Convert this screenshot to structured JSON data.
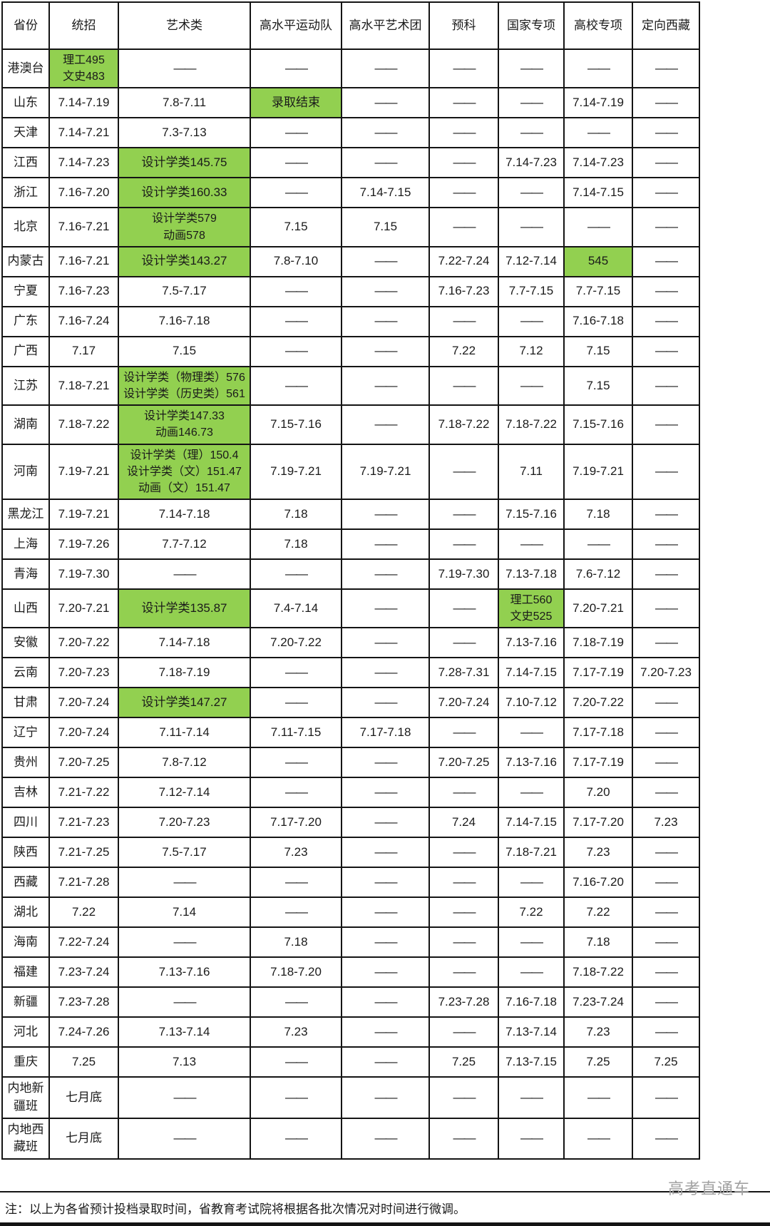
{
  "note": "注：以上为各省预计投档录取时间，省教育考试院将根据各批次情况对时间进行微调。",
  "watermark": "高考直通车",
  "colors": {
    "highlight_green": "#92d050",
    "border_black": "#141414",
    "dash_gray": "#3d3d3d",
    "watermark_gray": "#a2a2a2"
  },
  "table": {
    "dash": "——",
    "columns": [
      "省份",
      "统招",
      "艺术类",
      "高水平运动队",
      "高水平艺术团",
      "预科",
      "国家专项",
      "高校专项",
      "定向西藏"
    ],
    "rows": [
      {
        "province": "港澳台",
        "cells": [
          {
            "green": true,
            "lines": [
              "理工495",
              "文史483"
            ]
          },
          "——",
          "——",
          "——",
          "——",
          "——",
          "——",
          "——"
        ]
      },
      {
        "province": "山东",
        "cells": [
          "7.14-7.19",
          "7.8-7.11",
          {
            "green": true,
            "lines": [
              "录取结束"
            ]
          },
          "——",
          "——",
          "——",
          "7.14-7.19",
          "——"
        ]
      },
      {
        "province": "天津",
        "cells": [
          "7.14-7.21",
          "7.3-7.13",
          "——",
          "——",
          "——",
          "——",
          "——",
          "——"
        ]
      },
      {
        "province": "江西",
        "cells": [
          "7.14-7.23",
          {
            "green": true,
            "lines": [
              "设计学类145.75"
            ]
          },
          "——",
          "——",
          "——",
          "7.14-7.23",
          "7.14-7.23",
          "——"
        ]
      },
      {
        "province": "浙江",
        "cells": [
          "7.16-7.20",
          {
            "green": true,
            "lines": [
              "设计学类160.33"
            ]
          },
          "——",
          "7.14-7.15",
          "——",
          "——",
          "7.14-7.15",
          "——"
        ]
      },
      {
        "province": "北京",
        "cells": [
          "7.16-7.21",
          {
            "green": true,
            "lines": [
              "设计学类579",
              "动画578"
            ]
          },
          "7.15",
          "7.15",
          "——",
          "——",
          "——",
          "——"
        ]
      },
      {
        "province": "内蒙古",
        "cells": [
          "7.16-7.21",
          {
            "green": true,
            "lines": [
              "设计学类143.27"
            ]
          },
          "7.8-7.10",
          "——",
          "7.22-7.24",
          "7.12-7.14",
          {
            "green": true,
            "lines": [
              "545"
            ]
          },
          "——"
        ]
      },
      {
        "province": "宁夏",
        "cells": [
          "7.16-7.23",
          "7.5-7.17",
          "——",
          "——",
          "7.16-7.23",
          "7.7-7.15",
          "7.7-7.15",
          "——"
        ]
      },
      {
        "province": "广东",
        "cells": [
          "7.16-7.24",
          "7.16-7.18",
          "——",
          "——",
          "——",
          "——",
          "7.16-7.18",
          "——"
        ]
      },
      {
        "province": "广西",
        "cells": [
          "7.17",
          "7.15",
          "——",
          "——",
          "7.22",
          "7.12",
          "7.15",
          "——"
        ]
      },
      {
        "province": "江苏",
        "cells": [
          "7.18-7.21",
          {
            "green": true,
            "lines": [
              "设计学类（物理类）576",
              "设计学类（历史类）561"
            ]
          },
          "——",
          "——",
          "——",
          "——",
          "7.15",
          "——"
        ]
      },
      {
        "province": "湖南",
        "cells": [
          "7.18-7.22",
          {
            "green": true,
            "lines": [
              "设计学类147.33",
              "动画146.73"
            ]
          },
          "7.15-7.16",
          "——",
          "7.18-7.22",
          "7.18-7.22",
          "7.15-7.16",
          "——"
        ]
      },
      {
        "province": "河南",
        "cells": [
          "7.19-7.21",
          {
            "green": true,
            "lines": [
              "设计学类（理）150.4",
              "设计学类（文）151.47",
              "动画（文）151.47"
            ]
          },
          "7.19-7.21",
          "7.19-7.21",
          "——",
          "7.11",
          "7.19-7.21",
          "——"
        ]
      },
      {
        "province": "黑龙江",
        "cells": [
          "7.19-7.21",
          "7.14-7.18",
          "7.18",
          "——",
          "——",
          "7.15-7.16",
          "7.18",
          "——"
        ]
      },
      {
        "province": "上海",
        "cells": [
          "7.19-7.26",
          "7.7-7.12",
          "7.18",
          "——",
          "——",
          "——",
          "——",
          "——"
        ]
      },
      {
        "province": "青海",
        "cells": [
          "7.19-7.30",
          "——",
          "——",
          "——",
          "7.19-7.30",
          "7.13-7.18",
          "7.6-7.12",
          "——"
        ]
      },
      {
        "province": "山西",
        "cells": [
          "7.20-7.21",
          {
            "green": true,
            "lines": [
              "设计学类135.87"
            ]
          },
          "7.4-7.14",
          "——",
          "——",
          {
            "green": true,
            "lines": [
              "理工560",
              "文史525"
            ]
          },
          "7.20-7.21",
          "——"
        ]
      },
      {
        "province": "安徽",
        "cells": [
          "7.20-7.22",
          "7.14-7.18",
          "7.20-7.22",
          "——",
          "——",
          "7.13-7.16",
          "7.18-7.19",
          "——"
        ]
      },
      {
        "province": "云南",
        "cells": [
          "7.20-7.23",
          "7.18-7.19",
          "——",
          "——",
          "7.28-7.31",
          "7.14-7.15",
          "7.17-7.19",
          "7.20-7.23"
        ]
      },
      {
        "province": "甘肃",
        "cells": [
          "7.20-7.24",
          {
            "green": true,
            "lines": [
              "设计学类147.27"
            ]
          },
          "——",
          "——",
          "7.20-7.24",
          "7.10-7.12",
          "7.20-7.22",
          "——"
        ]
      },
      {
        "province": "辽宁",
        "cells": [
          "7.20-7.24",
          "7.11-7.14",
          "7.11-7.15",
          "7.17-7.18",
          "——",
          "——",
          "7.17-7.18",
          "——"
        ]
      },
      {
        "province": "贵州",
        "cells": [
          "7.20-7.25",
          "7.8-7.12",
          "——",
          "——",
          "7.20-7.25",
          "7.13-7.16",
          "7.17-7.19",
          "——"
        ]
      },
      {
        "province": "吉林",
        "cells": [
          "7.21-7.22",
          "7.12-7.14",
          "——",
          "——",
          "——",
          "——",
          "7.20",
          "——"
        ]
      },
      {
        "province": "四川",
        "cells": [
          "7.21-7.23",
          "7.20-7.23",
          "7.17-7.20",
          "——",
          "7.24",
          "7.14-7.15",
          "7.17-7.20",
          "7.23"
        ]
      },
      {
        "province": "陕西",
        "cells": [
          "7.21-7.25",
          "7.5-7.17",
          "7.23",
          "——",
          "——",
          "7.18-7.21",
          "7.23",
          "——"
        ]
      },
      {
        "province": "西藏",
        "cells": [
          "7.21-7.28",
          "——",
          "——",
          "——",
          "——",
          "——",
          "7.16-7.20",
          "——"
        ]
      },
      {
        "province": "湖北",
        "cells": [
          "7.22",
          "7.14",
          "——",
          "——",
          "——",
          "7.22",
          "7.22",
          "——"
        ]
      },
      {
        "province": "海南",
        "cells": [
          "7.22-7.24",
          "——",
          "7.18",
          "——",
          "——",
          "——",
          "7.18",
          "——"
        ]
      },
      {
        "province": "福建",
        "cells": [
          "7.23-7.24",
          "7.13-7.16",
          "7.18-7.20",
          "——",
          "——",
          "——",
          "7.18-7.22",
          "——"
        ]
      },
      {
        "province": "新疆",
        "cells": [
          "7.23-7.28",
          "——",
          "——",
          "——",
          "7.23-7.28",
          "7.16-7.18",
          "7.23-7.24",
          "——"
        ]
      },
      {
        "province": "河北",
        "cells": [
          "7.24-7.26",
          "7.13-7.14",
          "7.23",
          "——",
          "——",
          "7.13-7.14",
          "7.23",
          "——"
        ]
      },
      {
        "province": "重庆",
        "cells": [
          "7.25",
          "7.13",
          "——",
          "——",
          "7.25",
          "7.13-7.15",
          "7.25",
          "7.25"
        ]
      },
      {
        "province": "内地新疆班",
        "cells": [
          "七月底",
          "——",
          "——",
          "——",
          "——",
          "——",
          "——",
          "——"
        ]
      },
      {
        "province": "内地西藏班",
        "cells": [
          "七月底",
          "——",
          "——",
          "——",
          "——",
          "——",
          "——",
          "——"
        ]
      }
    ]
  }
}
